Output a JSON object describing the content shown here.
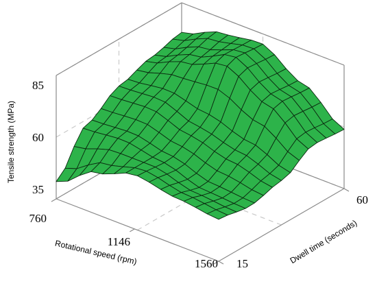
{
  "chart_data": {
    "type": "surface",
    "title": "",
    "xlabel": "Rotational speed (rpm)",
    "ylabel": "Dwell time (seconds)",
    "zlabel": "Tensile strength (MPa)",
    "x_ticks": [
      "760",
      "1146",
      "1560"
    ],
    "y_ticks": [
      "15",
      "60"
    ],
    "z_ticks": [
      "35",
      "60",
      "85"
    ],
    "xlim": [
      760,
      1560
    ],
    "ylim": [
      15,
      60
    ],
    "zlim": [
      35,
      85
    ],
    "grid": true,
    "surface_color": "#2db34a",
    "mesh_color": "#0b2a10",
    "surface_rows_rotational_speed": [
      760,
      960,
      1146,
      1360,
      1560
    ],
    "surface_cols_dwell_time": [
      15,
      26,
      38,
      49,
      60
    ],
    "z": [
      [
        42,
        58,
        66,
        70,
        73
      ],
      [
        52,
        59,
        67,
        76,
        79
      ],
      [
        57,
        56,
        62,
        82,
        81
      ],
      [
        54,
        51,
        58,
        72,
        71
      ],
      [
        52,
        50,
        53,
        60,
        59
      ]
    ]
  }
}
